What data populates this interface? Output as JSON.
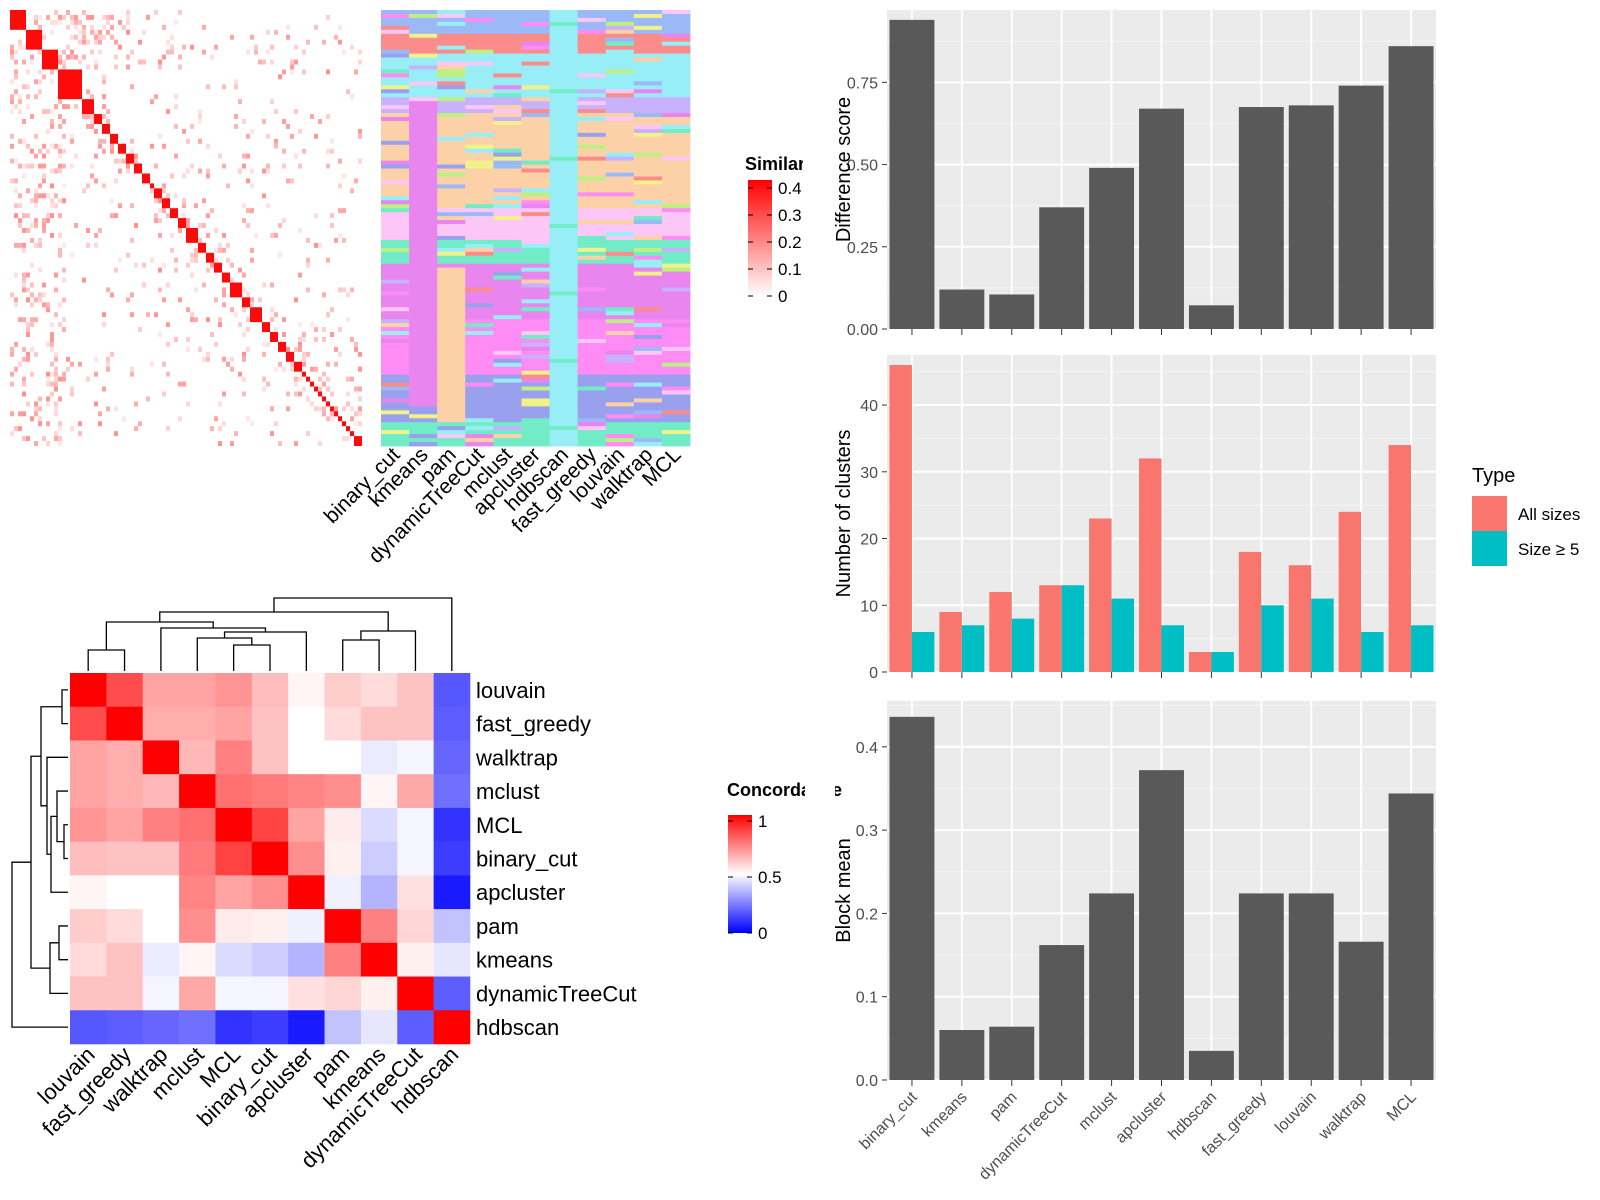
{
  "chart_data": [
    {
      "type": "heatmap",
      "panel": "similarity-heatmap",
      "legend_title": "Similarity",
      "legend_ticks": [
        "0",
        "0.1",
        "0.2",
        "0.3",
        "0.4"
      ],
      "legend_range": [
        0,
        0.4
      ],
      "low_color": "#ffffff",
      "high_color": "#ff0000"
    },
    {
      "type": "heatmap",
      "panel": "cluster-assignment-heatmap",
      "columns": [
        "binary_cut",
        "kmeans",
        "pam",
        "dynamicTreeCut",
        "mclust",
        "apcluster",
        "hdbscan",
        "fast_greedy",
        "louvain",
        "walktrap",
        "MCL"
      ]
    },
    {
      "type": "heatmap",
      "panel": "concordance-heatmap",
      "legend_title": "Concordance",
      "legend_ticks": [
        "0",
        "0.5",
        "1"
      ],
      "legend_range": [
        0,
        1
      ],
      "low_color": "#0000ff",
      "mid_color": "#ffffff",
      "high_color": "#ff0000",
      "rows": [
        "louvain",
        "fast_greedy",
        "walktrap",
        "mclust",
        "MCL",
        "binary_cut",
        "apcluster",
        "pam",
        "kmeans",
        "dynamicTreeCut",
        "hdbscan"
      ],
      "columns": [
        "louvain",
        "fast_greedy",
        "walktrap",
        "mclust",
        "MCL",
        "binary_cut",
        "apcluster",
        "pam",
        "kmeans",
        "dynamicTreeCut",
        "hdbscan"
      ],
      "values": [
        [
          1.0,
          0.85,
          0.68,
          0.68,
          0.71,
          0.63,
          0.52,
          0.6,
          0.57,
          0.62,
          0.17
        ],
        [
          0.85,
          1.0,
          0.66,
          0.66,
          0.68,
          0.62,
          0.5,
          0.57,
          0.62,
          0.62,
          0.18
        ],
        [
          0.68,
          0.66,
          1.0,
          0.64,
          0.75,
          0.62,
          0.5,
          0.5,
          0.46,
          0.48,
          0.2
        ],
        [
          0.68,
          0.66,
          0.64,
          1.0,
          0.78,
          0.76,
          0.74,
          0.72,
          0.52,
          0.67,
          0.22
        ],
        [
          0.71,
          0.68,
          0.75,
          0.78,
          1.0,
          0.87,
          0.68,
          0.54,
          0.43,
          0.48,
          0.1
        ],
        [
          0.63,
          0.62,
          0.62,
          0.76,
          0.87,
          1.0,
          0.72,
          0.53,
          0.4,
          0.48,
          0.12
        ],
        [
          0.52,
          0.5,
          0.5,
          0.74,
          0.68,
          0.72,
          1.0,
          0.47,
          0.35,
          0.56,
          0.05
        ],
        [
          0.6,
          0.57,
          0.5,
          0.72,
          0.54,
          0.53,
          0.47,
          1.0,
          0.75,
          0.58,
          0.38
        ],
        [
          0.57,
          0.62,
          0.46,
          0.52,
          0.43,
          0.4,
          0.35,
          0.75,
          1.0,
          0.53,
          0.45
        ],
        [
          0.62,
          0.62,
          0.48,
          0.67,
          0.48,
          0.48,
          0.56,
          0.58,
          0.53,
          1.0,
          0.18
        ],
        [
          0.17,
          0.18,
          0.2,
          0.22,
          0.1,
          0.12,
          0.05,
          0.38,
          0.45,
          0.18,
          1.0
        ]
      ]
    },
    {
      "type": "bar",
      "panel": "difference-score",
      "categories": [
        "binary_cut",
        "kmeans",
        "pam",
        "dynamicTreeCut",
        "mclust",
        "apcluster",
        "hdbscan",
        "fast_greedy",
        "louvain",
        "walktrap",
        "MCL"
      ],
      "values": [
        0.94,
        0.12,
        0.105,
        0.37,
        0.49,
        0.67,
        0.072,
        0.675,
        0.68,
        0.74,
        0.86
      ],
      "ylabel": "Difference score",
      "ylim": [
        0,
        0.97
      ],
      "yticks": [
        "0.00",
        "0.25",
        "0.50",
        "0.75"
      ],
      "color": "#595959"
    },
    {
      "type": "bar",
      "panel": "number-of-clusters",
      "categories": [
        "binary_cut",
        "kmeans",
        "pam",
        "dynamicTreeCut",
        "mclust",
        "apcluster",
        "hdbscan",
        "fast_greedy",
        "louvain",
        "walktrap",
        "MCL"
      ],
      "series": [
        {
          "name": "All sizes",
          "values": [
            46,
            9,
            12,
            13,
            23,
            32,
            3,
            18,
            16,
            24,
            34
          ],
          "color": "#f8766d"
        },
        {
          "name": "Size ≥ 5",
          "values": [
            6,
            7,
            8,
            13,
            11,
            7,
            3,
            10,
            11,
            6,
            7
          ],
          "color": "#00bfc4"
        }
      ],
      "ylabel": "Number of clusters",
      "ylim": [
        0,
        47.5
      ],
      "yticks": [
        "0",
        "10",
        "20",
        "30",
        "40"
      ],
      "legend_title": "Type",
      "legend_position": "right"
    },
    {
      "type": "bar",
      "panel": "block-mean",
      "categories": [
        "binary_cut",
        "kmeans",
        "pam",
        "dynamicTreeCut",
        "mclust",
        "apcluster",
        "hdbscan",
        "fast_greedy",
        "louvain",
        "walktrap",
        "MCL"
      ],
      "values": [
        0.436,
        0.06,
        0.064,
        0.162,
        0.224,
        0.372,
        0.035,
        0.224,
        0.224,
        0.166,
        0.344
      ],
      "ylabel": "Block mean",
      "ylim": [
        0,
        0.455
      ],
      "yticks": [
        "0.0",
        "0.1",
        "0.2",
        "0.3",
        "0.4"
      ],
      "color": "#595959"
    }
  ]
}
